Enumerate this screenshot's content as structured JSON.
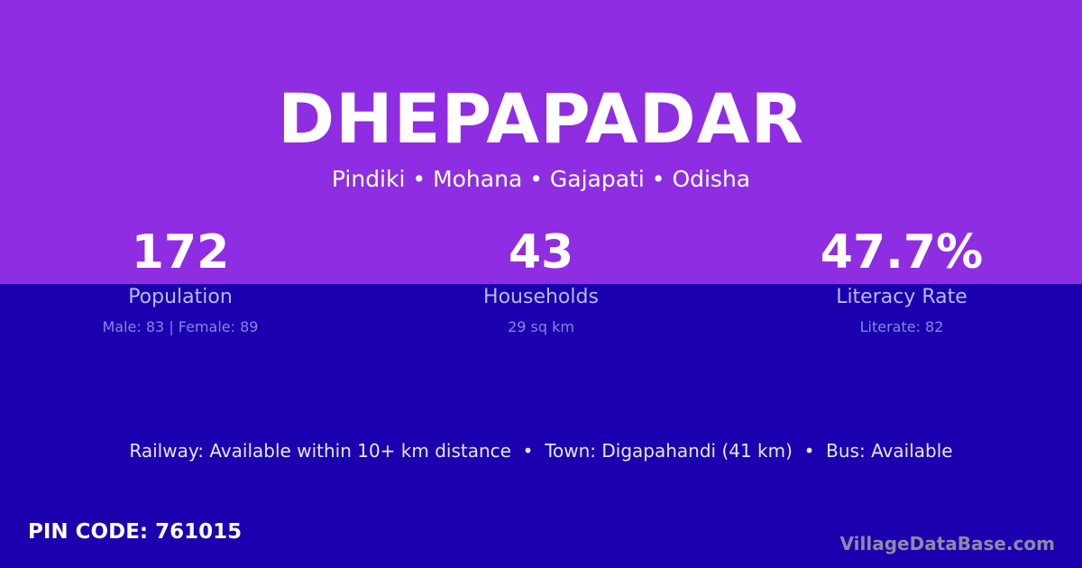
{
  "village": "DHEPAPADAR",
  "location": "Pindiki • Mohana • Gajapati • Odisha",
  "stats": [
    {
      "value": "172",
      "label": "Population",
      "detail": "Male: 83 | Female: 89"
    },
    {
      "value": "43",
      "label": "Households",
      "detail": "29 sq km"
    },
    {
      "value": "47.7%",
      "label": "Literacy Rate",
      "detail": "Literate: 82"
    }
  ],
  "info": "Railway: Available within 10+ km distance  •  Town: Digapahandi (41 km)  •  Bus: Available",
  "pin": "PIN CODE: 761015",
  "watermark": "VillageDataBase.com",
  "colors": {
    "top": "#8e2de2",
    "bottom": "#1a00ae"
  }
}
